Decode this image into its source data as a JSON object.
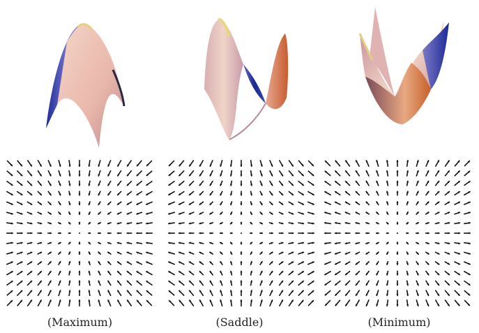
{
  "panels": [
    {
      "caption": "(Maximum)",
      "type": "maximum"
    },
    {
      "caption": "(Saddle)",
      "type": "saddle"
    },
    {
      "caption": "(Minimum)",
      "type": "minimum"
    }
  ],
  "colors": {
    "surface_light": "#f2d0c4",
    "surface_blue": "#2a3aa8",
    "surface_orange": "#d8703a",
    "surface_yellow": "#e8e07a",
    "arrow": "#111111"
  },
  "arrow_grid_size": 15
}
